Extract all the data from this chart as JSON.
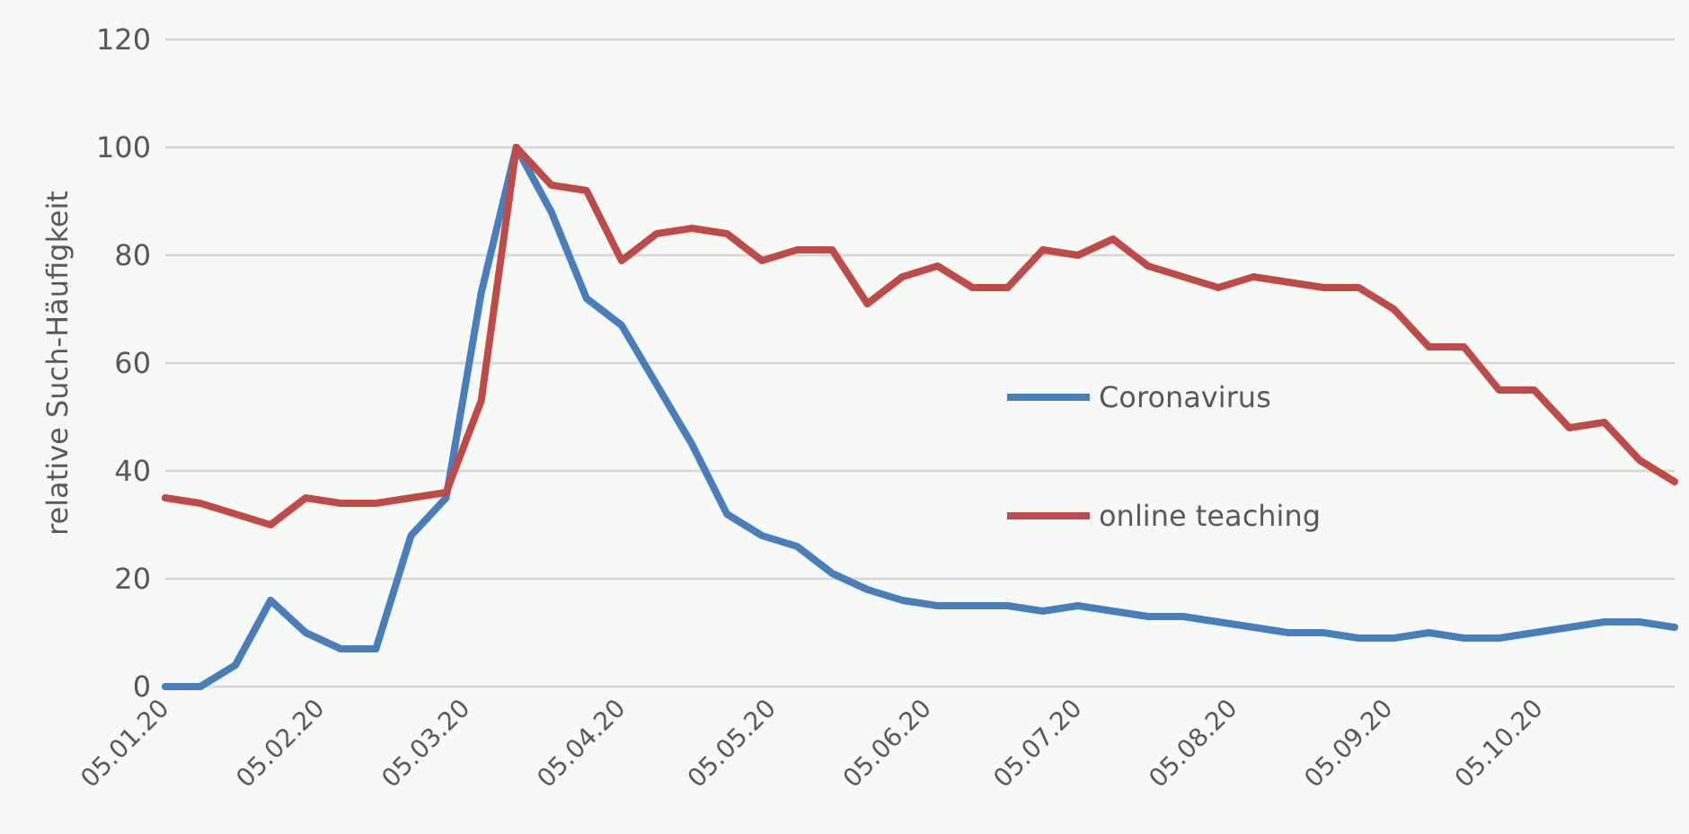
{
  "chart_data": {
    "type": "line",
    "ylabel": "relative Such-Häufigkeit",
    "x": [
      "2020-01-05",
      "2020-01-12",
      "2020-01-19",
      "2020-01-26",
      "2020-02-02",
      "2020-02-09",
      "2020-02-16",
      "2020-02-23",
      "2020-03-01",
      "2020-03-08",
      "2020-03-15",
      "2020-03-22",
      "2020-03-29",
      "2020-04-05",
      "2020-04-12",
      "2020-04-19",
      "2020-04-26",
      "2020-05-03",
      "2020-05-10",
      "2020-05-17",
      "2020-05-24",
      "2020-05-31",
      "2020-06-07",
      "2020-06-14",
      "2020-06-21",
      "2020-06-28",
      "2020-07-05",
      "2020-07-12",
      "2020-07-19",
      "2020-07-26",
      "2020-08-02",
      "2020-08-09",
      "2020-08-16",
      "2020-08-23",
      "2020-08-30",
      "2020-09-06",
      "2020-09-13",
      "2020-09-20",
      "2020-09-27",
      "2020-10-04",
      "2020-10-11",
      "2020-10-18",
      "2020-10-25",
      "2020-11-01"
    ],
    "series": [
      {
        "name": "Coronavirus",
        "color": "#4a7ebb",
        "values": [
          0,
          0,
          4,
          16,
          10,
          7,
          7,
          28,
          35,
          73,
          100,
          88,
          72,
          67,
          56,
          45,
          32,
          28,
          26,
          21,
          18,
          16,
          15,
          15,
          15,
          14,
          15,
          14,
          13,
          13,
          12,
          11,
          10,
          10,
          9,
          9,
          10,
          9,
          9,
          10,
          11,
          12,
          12,
          11
        ]
      },
      {
        "name": "online teaching",
        "color": "#be4b48",
        "values": [
          35,
          34,
          32,
          30,
          35,
          34,
          34,
          35,
          36,
          53,
          100,
          93,
          92,
          79,
          84,
          85,
          84,
          79,
          81,
          81,
          71,
          76,
          78,
          74,
          74,
          81,
          80,
          83,
          78,
          76,
          74,
          76,
          75,
          74,
          74,
          70,
          63,
          63,
          55,
          55,
          48,
          49,
          42,
          38
        ]
      }
    ],
    "xlim": [
      "2020-01-05",
      "2020-11-01"
    ],
    "xticks": [
      {
        "value": "2020-01-05",
        "label": "05.01.20"
      },
      {
        "value": "2020-02-05",
        "label": "05.02.20"
      },
      {
        "value": "2020-03-05",
        "label": "05.03.20"
      },
      {
        "value": "2020-04-05",
        "label": "05.04.20"
      },
      {
        "value": "2020-05-05",
        "label": "05.05.20"
      },
      {
        "value": "2020-06-05",
        "label": "05.06.20"
      },
      {
        "value": "2020-07-05",
        "label": "05.07.20"
      },
      {
        "value": "2020-08-05",
        "label": "05.08.20"
      },
      {
        "value": "2020-09-05",
        "label": "05.09.20"
      },
      {
        "value": "2020-10-05",
        "label": "05.10.20"
      }
    ],
    "ylim": [
      0,
      120
    ],
    "yticks": [
      0,
      20,
      40,
      60,
      80,
      100,
      120
    ],
    "grid": "y",
    "legend": "right",
    "marker": "none",
    "line_style": "solid"
  }
}
